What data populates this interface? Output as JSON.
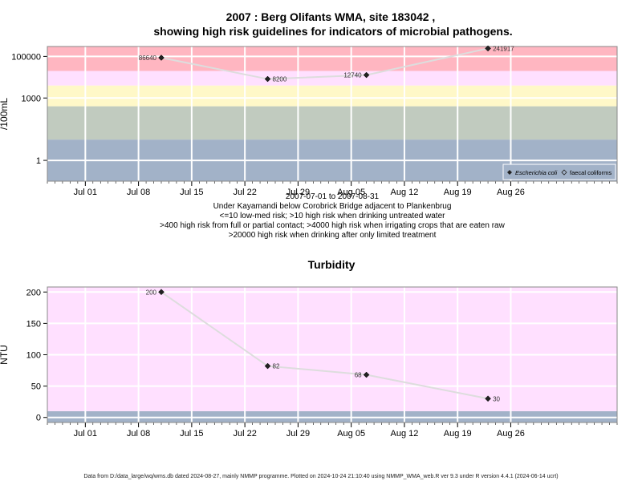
{
  "footer": "Data from D:/data_large/wq/wms.db dated 2024-08-27, mainly NMMP programme. Plotted on 2024-10-24 21:10:40 using NMMP_WMA_web.R ver 9.3 under R version 4.4.1 (2024-06-14 ucrt)",
  "colors": {
    "band_red": "#ffb6c1",
    "band_pink": "#ffe0ff",
    "band_yellow": "#fff8c8",
    "band_green": "#c1cbbf",
    "band_blue": "#a2b2c8",
    "series_line": "#dddddd",
    "grid": "#ffffff"
  },
  "chart_data": [
    {
      "type": "line",
      "title": "2007 : Berg Olifants WMA, site 183042 ,",
      "subtitle": "showing high risk guidelines for indicators of microbial pathogens.",
      "ylabel": "/100mL",
      "y_scale": "log10",
      "ylim": [
        0.1,
        300000
      ],
      "yticks": [
        1,
        1000,
        100000
      ],
      "ytick_labels": [
        "1",
        "1000",
        "100000"
      ],
      "xlim": [
        "2007-06-26",
        "2007-09-09"
      ],
      "xticks": [
        "2007-07-01",
        "2007-07-08",
        "2007-07-15",
        "2007-07-22",
        "2007-07-29",
        "2007-08-05",
        "2007-08-12",
        "2007-08-19",
        "2007-08-26"
      ],
      "xtick_labels": [
        "Jul 01",
        "Jul 08",
        "Jul 15",
        "Jul 22",
        "Jul 29",
        "Aug 05",
        "Aug 12",
        "Aug 19",
        "Aug 26"
      ],
      "bands": [
        {
          "from": 0.1,
          "to": 10,
          "color": "band_blue"
        },
        {
          "from": 10,
          "to": 400,
          "color": "band_green"
        },
        {
          "from": 400,
          "to": 4000,
          "color": "band_yellow"
        },
        {
          "from": 4000,
          "to": 20000,
          "color": "band_pink"
        },
        {
          "from": 20000,
          "to": 300000,
          "color": "band_red"
        }
      ],
      "series": [
        {
          "name": "Escherichia coli",
          "marker": "filled-diamond",
          "x": [
            "2007-07-11",
            "2007-07-25",
            "2007-08-07",
            "2007-08-23"
          ],
          "y": [
            86640,
            8200,
            12740,
            241917
          ],
          "labels": [
            "86640",
            "8200",
            "12740",
            "241917"
          ]
        },
        {
          "name": "faecal coliforms",
          "marker": "open-diamond",
          "x": [],
          "y": []
        }
      ],
      "legend_position": "bottom-right",
      "notes": [
        "2007-07-01 to 2007-08-31",
        "Under Kayamandi below Corobrick Bridge adjacent to Plankenbrug",
        "<=10 low-med risk; >10 high risk when drinking untreated water",
        ">400 high risk from full or partial contact; >4000 high risk when irrigating crops that are eaten raw",
        ">20000 high risk when drinking after only limited treatment"
      ]
    },
    {
      "type": "line",
      "title": "Turbidity",
      "ylabel": "NTU",
      "ylim": [
        -8,
        208
      ],
      "yticks": [
        0,
        50,
        100,
        150,
        200
      ],
      "ytick_labels": [
        "0",
        "50",
        "100",
        "150",
        "200"
      ],
      "xlim": [
        "2007-06-26",
        "2007-09-09"
      ],
      "xticks": [
        "2007-07-01",
        "2007-07-08",
        "2007-07-15",
        "2007-07-22",
        "2007-07-29",
        "2007-08-05",
        "2007-08-12",
        "2007-08-19",
        "2007-08-26"
      ],
      "xtick_labels": [
        "Jul 01",
        "Jul 08",
        "Jul 15",
        "Jul 22",
        "Jul 29",
        "Aug 05",
        "Aug 12",
        "Aug 19",
        "Aug 26"
      ],
      "bands": [
        {
          "from": -8,
          "to": 10,
          "color": "band_blue"
        },
        {
          "from": 10,
          "to": 208,
          "color": "band_pink"
        }
      ],
      "series": [
        {
          "name": "Turbidity",
          "marker": "filled-diamond",
          "x": [
            "2007-07-11",
            "2007-07-25",
            "2007-08-07",
            "2007-08-23"
          ],
          "y": [
            200,
            82,
            68,
            30
          ],
          "labels": [
            "200",
            "82",
            "68",
            "30"
          ]
        }
      ]
    }
  ]
}
